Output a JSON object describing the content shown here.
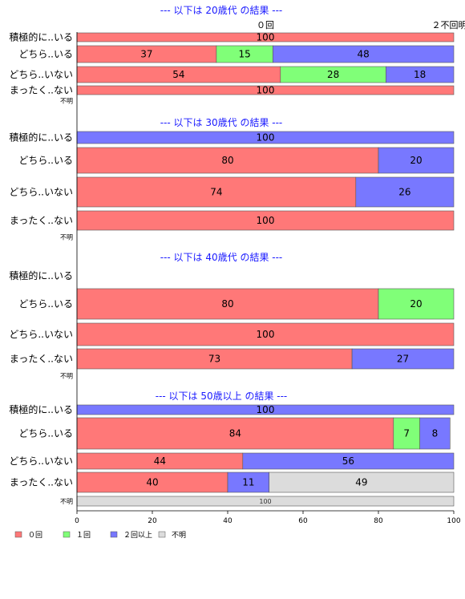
{
  "chart_data": {
    "type": "bar",
    "orientation": "horizontal",
    "stacked": true,
    "xlim": [
      0,
      100
    ],
    "xticks": [
      0,
      20,
      40,
      60,
      80,
      100
    ],
    "series_names": [
      "０回",
      "１回",
      "２回以上",
      "不明"
    ],
    "colors": [
      "#ff7878",
      "#80ff78",
      "#7878ff",
      "#dcdcdc"
    ],
    "legend": {
      "placement": "bottom-left",
      "entries": [
        {
          "label": "０回",
          "color": "#ff7878"
        },
        {
          "label": "１回",
          "color": "#80ff78"
        },
        {
          "label": "２回以上",
          "color": "#7878ff"
        },
        {
          "label": "不明",
          "color": "#dcdcdc"
        }
      ]
    },
    "top_annotations": {
      "center": "０回",
      "right": "２不回明上"
    },
    "panels": [
      {
        "title": "--- 以下は 20歳代 の結果 ---",
        "rows": [
          {
            "label": "積極的に..いる",
            "values": [
              100,
              0,
              0,
              0
            ]
          },
          {
            "label": "どちら..いる",
            "values": [
              37,
              15,
              48,
              0
            ]
          },
          {
            "label": "どちら..いない",
            "values": [
              54,
              28,
              18,
              0
            ]
          },
          {
            "label": "まったく..ない",
            "values": [
              100,
              0,
              0,
              0
            ]
          },
          {
            "label": "不明",
            "values": [
              0,
              0,
              0,
              0
            ]
          }
        ]
      },
      {
        "title": "--- 以下は 30歳代 の結果 ---",
        "rows": [
          {
            "label": "積極的に..いる",
            "values": [
              0,
              0,
              100,
              0
            ]
          },
          {
            "label": "どちら..いる",
            "values": [
              80,
              0,
              20,
              0
            ]
          },
          {
            "label": "どちら..いない",
            "values": [
              74,
              0,
              26,
              0
            ]
          },
          {
            "label": "まったく..ない",
            "values": [
              100,
              0,
              0,
              0
            ]
          },
          {
            "label": "不明",
            "values": [
              0,
              0,
              0,
              0
            ]
          }
        ]
      },
      {
        "title": "--- 以下は 40歳代 の結果 ---",
        "rows": [
          {
            "label": "積極的に..いる",
            "values": [
              0,
              0,
              0,
              0
            ]
          },
          {
            "label": "どちら..いる",
            "values": [
              80,
              20,
              0,
              0
            ]
          },
          {
            "label": "どちら..いない",
            "values": [
              100,
              0,
              0,
              0
            ]
          },
          {
            "label": "まったく..ない",
            "values": [
              73,
              0,
              27,
              0
            ]
          },
          {
            "label": "不明",
            "values": [
              0,
              0,
              0,
              0
            ]
          }
        ]
      },
      {
        "title": "--- 以下は 50歳以上 の結果 ---",
        "rows": [
          {
            "label": "積極的に..いる",
            "values": [
              0,
              0,
              100,
              0
            ]
          },
          {
            "label": "どちら..いる",
            "values": [
              84,
              7,
              8,
              0
            ]
          },
          {
            "label": "どちら..いない",
            "values": [
              44,
              0,
              56,
              0
            ]
          },
          {
            "label": "まったく..ない",
            "values": [
              40,
              0,
              11,
              49
            ]
          },
          {
            "label": "不明",
            "values": [
              0,
              0,
              0,
              100
            ]
          }
        ]
      }
    ]
  }
}
